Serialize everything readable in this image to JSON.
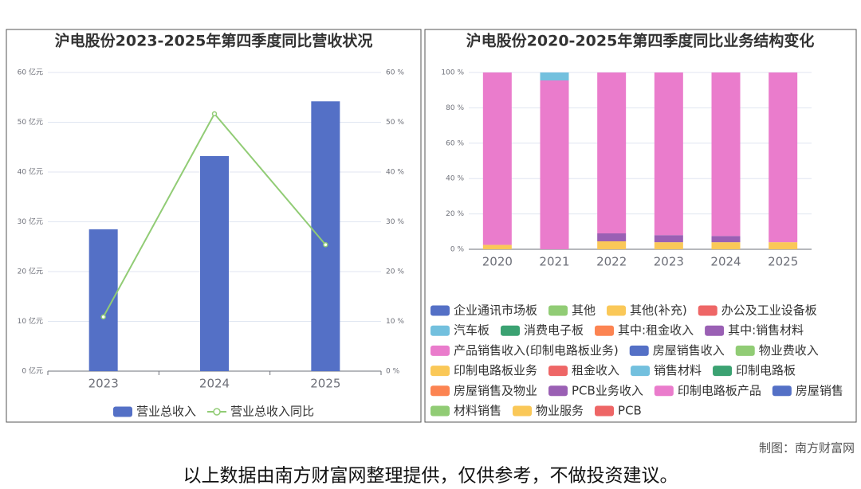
{
  "chart_data": [
    {
      "type": "bar",
      "title": "沪电股份2023-2025年第四季度同比营收状况",
      "categories": [
        "2023",
        "2024",
        "2025"
      ],
      "series": [
        {
          "name": "营业总收入",
          "color": "#5470c6",
          "values": [
            28.5,
            43.2,
            54.2
          ]
        },
        {
          "name": "营业总收入同比",
          "color": "#91cc75",
          "type": "line",
          "axis": "y2",
          "values": [
            10.9,
            51.7,
            25.4
          ]
        }
      ],
      "ylim": [
        0,
        60
      ],
      "yticks": [
        {
          "value": 0,
          "label": "0 亿元"
        },
        {
          "value": 10,
          "label": "10 亿元"
        },
        {
          "value": 20,
          "label": "20 亿元"
        },
        {
          "value": 30,
          "label": "30 亿元"
        },
        {
          "value": 40,
          "label": "40 亿元"
        },
        {
          "value": 50,
          "label": "50 亿元"
        },
        {
          "value": 60,
          "label": "60 亿元"
        }
      ],
      "y2lim": [
        0,
        60
      ],
      "y2ticks": [
        {
          "value": 0,
          "label": "0 %"
        },
        {
          "value": 10,
          "label": "10 %"
        },
        {
          "value": 20,
          "label": "20 %"
        },
        {
          "value": 30,
          "label": "30 %"
        },
        {
          "value": 40,
          "label": "40 %"
        },
        {
          "value": 50,
          "label": "50 %"
        },
        {
          "value": 60,
          "label": "60 %"
        }
      ],
      "grid": true,
      "legend": "bottom"
    },
    {
      "type": "bar",
      "stacked": true,
      "title": "沪电股份2020-2025年第四季度同比业务结构变化",
      "categories": [
        "2020",
        "2021",
        "2022",
        "2023",
        "2024",
        "2025"
      ],
      "series": [
        {
          "name": "企业通讯市场板",
          "color": "#5470c6",
          "values": [
            null,
            null,
            null,
            null,
            null,
            null
          ]
        },
        {
          "name": "其他",
          "color": "#91cc75",
          "values": [
            null,
            null,
            null,
            null,
            null,
            null
          ]
        },
        {
          "name": "其他(补充)",
          "color": "#fac858",
          "values": [
            2.5,
            null,
            null,
            null,
            null,
            null
          ]
        },
        {
          "name": "办公及工业设备板",
          "color": "#ee6666",
          "values": [
            null,
            null,
            null,
            null,
            null,
            null
          ]
        },
        {
          "name": "汽车板",
          "color": "#73c0de",
          "values": [
            null,
            null,
            null,
            null,
            null,
            null
          ]
        },
        {
          "name": "消费电子板",
          "color": "#3ba272",
          "values": [
            null,
            null,
            null,
            null,
            null,
            null
          ]
        },
        {
          "name": "其中:租金收入",
          "color": "#fc8452",
          "values": [
            null,
            null,
            null,
            null,
            null,
            null
          ]
        },
        {
          "name": "其中:销售材料",
          "color": "#9a60b4",
          "values": [
            null,
            null,
            null,
            null,
            null,
            null
          ]
        },
        {
          "name": "产品销售收入(印制电路板业务)",
          "color": "#ea7ccc",
          "values": [
            97.5,
            95.5,
            null,
            null,
            null,
            null
          ]
        },
        {
          "name": "房屋销售收入",
          "color": "#5470c6",
          "values": [
            null,
            null,
            null,
            null,
            null,
            null
          ]
        },
        {
          "name": "物业费收入",
          "color": "#91cc75",
          "values": [
            null,
            null,
            null,
            null,
            null,
            null
          ]
        },
        {
          "name": "印制电路板业务",
          "color": "#fac858",
          "values": [
            null,
            null,
            4.5,
            4,
            4,
            4
          ]
        },
        {
          "name": "租金收入",
          "color": "#ee6666",
          "values": [
            null,
            null,
            null,
            null,
            null,
            null
          ]
        },
        {
          "name": "销售材料",
          "color": "#73c0de",
          "values": [
            null,
            4.5,
            null,
            null,
            null,
            null
          ]
        },
        {
          "name": "印制电路板",
          "color": "#3ba272",
          "values": [
            null,
            null,
            null,
            null,
            null,
            null
          ]
        },
        {
          "name": "房屋销售及物业",
          "color": "#fc8452",
          "values": [
            null,
            null,
            null,
            null,
            null,
            null
          ]
        },
        {
          "name": "PCB业务收入",
          "color": "#9a60b4",
          "values": [
            null,
            null,
            4.5,
            4,
            3.5,
            null
          ]
        },
        {
          "name": "印制电路板产品",
          "color": "#ea7ccc",
          "values": [
            null,
            null,
            91,
            92,
            92.5,
            96
          ]
        },
        {
          "name": "房屋销售",
          "color": "#5470c6",
          "values": [
            null,
            null,
            null,
            null,
            null,
            null
          ]
        },
        {
          "name": "材料销售",
          "color": "#91cc75",
          "values": [
            null,
            null,
            null,
            null,
            null,
            null
          ]
        },
        {
          "name": "物业服务",
          "color": "#fac858",
          "values": [
            null,
            null,
            null,
            null,
            null,
            null
          ]
        },
        {
          "name": "PCB",
          "color": "#ee6666",
          "values": [
            null,
            null,
            null,
            null,
            null,
            null
          ]
        }
      ],
      "ylim": [
        0,
        100
      ],
      "yticks": [
        {
          "value": 0,
          "label": "0 %"
        },
        {
          "value": 20,
          "label": "20 %"
        },
        {
          "value": 40,
          "label": "40 %"
        },
        {
          "value": 60,
          "label": "60 %"
        },
        {
          "value": 80,
          "label": "80 %"
        },
        {
          "value": 100,
          "label": "100 %"
        }
      ],
      "grid": true,
      "legend": "bottom"
    }
  ],
  "credit": "制图：南方财富网",
  "disclaimer": "以上数据由南方财富网整理提供，仅供参考，不做投资建议。"
}
